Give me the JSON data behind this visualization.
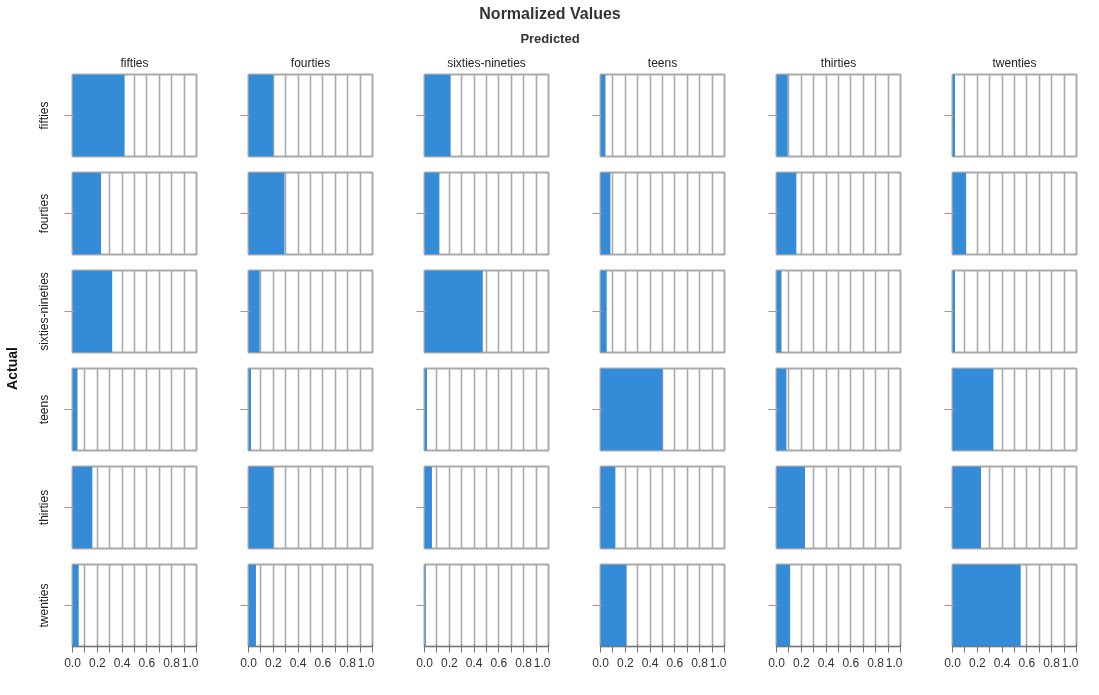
{
  "chart_data": [
    {
      "type": "other",
      "title": "Normalized Values",
      "xlabel": "Predicted",
      "ylabel": "Actual"
    },
    {
      "type": "bar",
      "orientation": "horizontal",
      "title": "fifties",
      "categories": [
        "fifties",
        "fourties",
        "sixties-nineties",
        "teens",
        "thirties",
        "twenties"
      ],
      "values": [
        0.42,
        0.23,
        0.32,
        0.04,
        0.16,
        0.05
      ],
      "color": "#348cd8",
      "xlim": [
        0,
        1
      ],
      "xticks": [
        {
          "value": 0,
          "label": "0.0"
        },
        {
          "value": 0.1,
          "label": null
        },
        0.2,
        {
          "value": 0.3,
          "label": null
        },
        0.4,
        {
          "value": 0.5,
          "label": null
        },
        0.6,
        {
          "value": 0.7,
          "label": null
        },
        0.8,
        {
          "value": 0.9,
          "label": null
        },
        {
          "value": 1,
          "label": "1.0"
        }
      ],
      "grid": "x"
    },
    {
      "type": "bar",
      "orientation": "horizontal",
      "title": "fourties",
      "categories": [
        null,
        null,
        null,
        null,
        null,
        null
      ],
      "values": [
        0.2,
        0.29,
        0.09,
        0.02,
        0.2,
        0.06
      ],
      "color": "#348cd8",
      "xlim": [
        0,
        1
      ],
      "xticks": [
        {
          "value": 0,
          "label": "0.0"
        },
        {
          "value": 0.1,
          "label": null
        },
        0.2,
        {
          "value": 0.3,
          "label": null
        },
        0.4,
        {
          "value": 0.5,
          "label": null
        },
        0.6,
        {
          "value": 0.7,
          "label": null
        },
        0.8,
        {
          "value": 0.9,
          "label": null
        },
        {
          "value": 1,
          "label": "1.0"
        }
      ],
      "grid": "x",
      "tick_labels": "x"
    },
    {
      "type": "bar",
      "orientation": "horizontal",
      "title": "sixties-nineties",
      "categories": [
        null,
        null,
        null,
        null,
        null,
        null
      ],
      "values": [
        0.21,
        0.12,
        0.47,
        0.02,
        0.06,
        0.01
      ],
      "color": "#348cd8",
      "xlim": [
        0,
        1
      ],
      "xticks": [
        {
          "value": 0,
          "label": "0.0"
        },
        {
          "value": 0.1,
          "label": null
        },
        0.2,
        {
          "value": 0.3,
          "label": null
        },
        0.4,
        {
          "value": 0.5,
          "label": null
        },
        0.6,
        {
          "value": 0.7,
          "label": null
        },
        0.8,
        {
          "value": 0.9,
          "label": null
        },
        {
          "value": 1,
          "label": "1.0"
        }
      ],
      "grid": "x",
      "tick_labels": "x"
    },
    {
      "type": "bar",
      "orientation": "horizontal",
      "title": "teens",
      "categories": [
        null,
        null,
        null,
        null,
        null,
        null
      ],
      "values": [
        0.04,
        0.08,
        0.05,
        0.5,
        0.12,
        0.21
      ],
      "color": "#348cd8",
      "xlim": [
        0,
        1
      ],
      "xticks": [
        {
          "value": 0,
          "label": "0.0"
        },
        {
          "value": 0.1,
          "label": null
        },
        0.2,
        {
          "value": 0.3,
          "label": null
        },
        0.4,
        {
          "value": 0.5,
          "label": null
        },
        0.6,
        {
          "value": 0.7,
          "label": null
        },
        0.8,
        {
          "value": 0.9,
          "label": null
        },
        {
          "value": 1,
          "label": "1.0"
        }
      ],
      "grid": "x",
      "tick_labels": "x"
    },
    {
      "type": "bar",
      "orientation": "horizontal",
      "title": "thirties",
      "categories": [
        null,
        null,
        null,
        null,
        null,
        null
      ],
      "values": [
        0.09,
        0.16,
        0.04,
        0.08,
        0.23,
        0.11
      ],
      "color": "#348cd8",
      "xlim": [
        0,
        1
      ],
      "xticks": [
        {
          "value": 0,
          "label": "0.0"
        },
        {
          "value": 0.1,
          "label": null
        },
        0.2,
        {
          "value": 0.3,
          "label": null
        },
        0.4,
        {
          "value": 0.5,
          "label": null
        },
        0.6,
        {
          "value": 0.7,
          "label": null
        },
        0.8,
        {
          "value": 0.9,
          "label": null
        },
        {
          "value": 1,
          "label": "1.0"
        }
      ],
      "grid": "x",
      "tick_labels": "x"
    },
    {
      "type": "bar",
      "orientation": "horizontal",
      "title": "twenties",
      "categories": [
        null,
        null,
        null,
        null,
        null,
        null
      ],
      "values": [
        0.02,
        0.11,
        0.02,
        0.33,
        0.23,
        0.55
      ],
      "color": "#348cd8",
      "xlim": [
        0,
        1
      ],
      "xticks": [
        {
          "value": 0,
          "label": "0.0"
        },
        {
          "value": 0.1,
          "label": null
        },
        0.2,
        {
          "value": 0.3,
          "label": null
        },
        0.4,
        {
          "value": 0.5,
          "label": null
        },
        0.6,
        {
          "value": 0.7,
          "label": null
        },
        0.8,
        {
          "value": 0.9,
          "label": null
        },
        {
          "value": 1,
          "label": "1.0"
        }
      ],
      "grid": "x",
      "tick_labels": "x"
    }
  ]
}
